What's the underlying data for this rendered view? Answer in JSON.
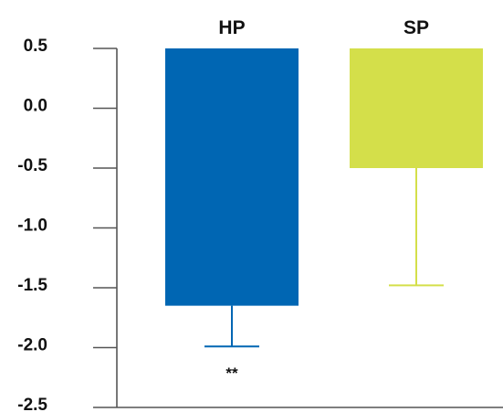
{
  "chart_data": {
    "type": "bar",
    "categories": [
      "HP",
      "SP"
    ],
    "values": [
      -1.65,
      -0.5
    ],
    "errors_lower": [
      -1.99,
      -1.48
    ],
    "baseline": 0.5,
    "colors": [
      "#0066b3",
      "#d4df4a"
    ],
    "ylim": [
      -2.5,
      0.5
    ],
    "yticks": [
      0.5,
      0.0,
      -0.5,
      -1.0,
      -1.5,
      -2.0,
      -2.5
    ],
    "ytick_labels": [
      "0.5",
      "0.0",
      "-0.5",
      "-1.0",
      "-1.5",
      "-2.0",
      "-2.5"
    ],
    "annotations": [
      {
        "category": "HP",
        "text": "**"
      }
    ],
    "title": "",
    "xlabel": "",
    "ylabel": "",
    "grid": false,
    "legend": "none"
  }
}
